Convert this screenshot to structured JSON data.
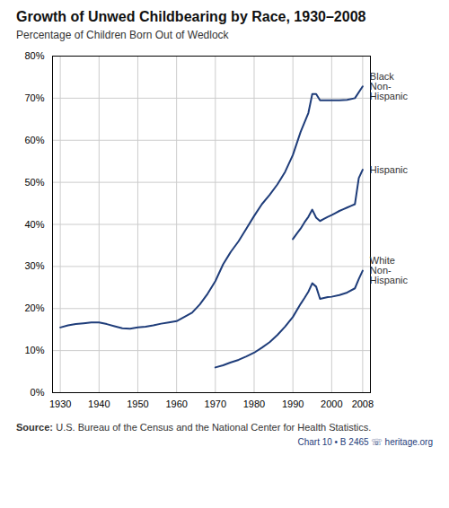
{
  "chart_data": {
    "type": "line",
    "title": "Growth of Unwed Childbearing by Race, 1930–2008",
    "subtitle": "Percentage of Children Born Out of Wedlock",
    "source_label": "Source:",
    "source": "U.S. Bureau of the Census and the National Center for Health Statistics.",
    "footer": "Chart 10 • B 2465  ☏  heritage.org",
    "xlim": [
      1928,
      2010
    ],
    "xticks": [
      1930,
      1940,
      1950,
      1960,
      1970,
      1980,
      1990,
      2000,
      2008
    ],
    "ylim": [
      0.0,
      0.8
    ],
    "yticks": [
      {
        "value": 0.0,
        "label": "0%"
      },
      {
        "value": 0.1,
        "label": "10%"
      },
      {
        "value": 0.2,
        "label": "20%"
      },
      {
        "value": 0.3,
        "label": "30%"
      },
      {
        "value": 0.4,
        "label": "40%"
      },
      {
        "value": 0.5,
        "label": "50%"
      },
      {
        "value": 0.6,
        "label": "60%"
      },
      {
        "value": 0.7,
        "label": "70%"
      },
      {
        "value": 0.8,
        "label": "80%"
      }
    ],
    "grid": true,
    "series": [
      {
        "name": "Black\nNon-\nHispanic",
        "color": "#1f3d7a",
        "x": [
          1930,
          1932,
          1934,
          1936,
          1938,
          1940,
          1942,
          1944,
          1946,
          1948,
          1950,
          1952,
          1954,
          1956,
          1958,
          1960,
          1962,
          1964,
          1966,
          1968,
          1970,
          1972,
          1974,
          1976,
          1978,
          1980,
          1982,
          1984,
          1986,
          1988,
          1990,
          1992,
          1994,
          1995,
          1996,
          1997,
          1998,
          2000,
          2002,
          2004,
          2006,
          2008
        ],
        "values": [
          0.155,
          0.16,
          0.163,
          0.165,
          0.167,
          0.167,
          0.163,
          0.158,
          0.153,
          0.152,
          0.155,
          0.157,
          0.16,
          0.164,
          0.167,
          0.17,
          0.18,
          0.19,
          0.21,
          0.235,
          0.265,
          0.305,
          0.335,
          0.36,
          0.39,
          0.42,
          0.448,
          0.47,
          0.495,
          0.525,
          0.565,
          0.62,
          0.665,
          0.71,
          0.71,
          0.695,
          0.695,
          0.695,
          0.695,
          0.696,
          0.7,
          0.728
        ]
      },
      {
        "name": "Hispanic",
        "color": "#1f3d7a",
        "x": [
          1990,
          1991,
          1992,
          1993,
          1994,
          1995,
          1996,
          1997,
          1998,
          1999,
          2000,
          2001,
          2002,
          2003,
          2004,
          2005,
          2006,
          2007,
          2008
        ],
        "values": [
          0.365,
          0.378,
          0.39,
          0.405,
          0.418,
          0.435,
          0.416,
          0.408,
          0.413,
          0.418,
          0.422,
          0.427,
          0.432,
          0.436,
          0.44,
          0.444,
          0.448,
          0.51,
          0.53
        ]
      },
      {
        "name": "White\nNon-\nHispanic",
        "color": "#1f3d7a",
        "x": [
          1970,
          1972,
          1974,
          1976,
          1978,
          1980,
          1982,
          1984,
          1986,
          1988,
          1990,
          1992,
          1993,
          1994,
          1995,
          1996,
          1997,
          1998,
          1999,
          2000,
          2002,
          2004,
          2006,
          2007,
          2008
        ],
        "values": [
          0.06,
          0.065,
          0.072,
          0.078,
          0.086,
          0.095,
          0.107,
          0.12,
          0.137,
          0.157,
          0.18,
          0.211,
          0.225,
          0.24,
          0.26,
          0.252,
          0.223,
          0.225,
          0.227,
          0.228,
          0.232,
          0.238,
          0.248,
          0.27,
          0.29
        ]
      }
    ]
  }
}
